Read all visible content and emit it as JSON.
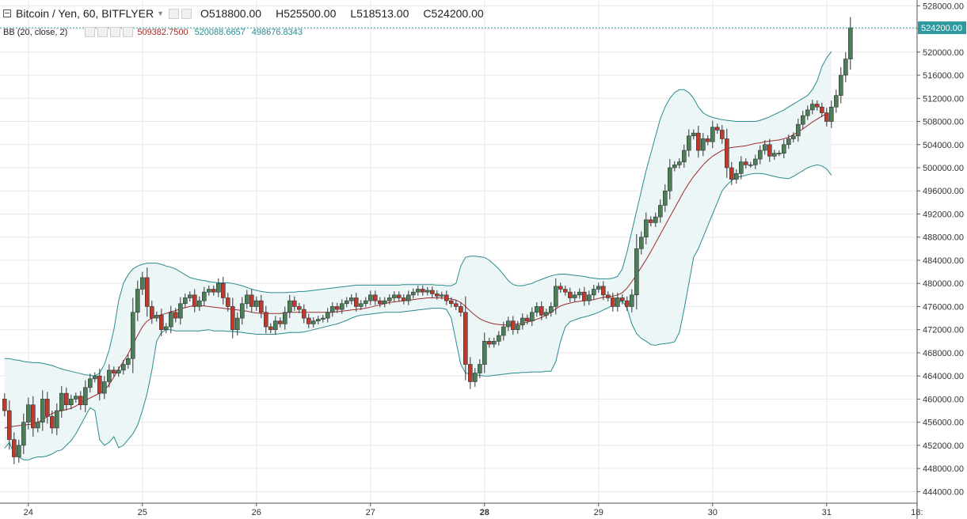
{
  "header": {
    "symbol": "Bitcoin / Yen, 60, BITFLYER",
    "ohlc": [
      {
        "k": "O",
        "v": "518800.00"
      },
      {
        "k": "H",
        "v": "525500.00"
      },
      {
        "k": "L",
        "v": "518513.00"
      },
      {
        "k": "C",
        "v": "524200.00"
      }
    ]
  },
  "indicator": {
    "name": "BB (20, close, 2)",
    "values": [
      "509382.7500",
      "520088.6657",
      "498676.8343"
    ]
  },
  "colors": {
    "up": "#4a7f57",
    "down": "#c0392b",
    "basis": "#9b2c2c",
    "band": "#2a8a8f",
    "fill": "#edf6f6",
    "grid": "#e8e8e8",
    "price_tag": "#2e9aa0"
  },
  "chart_data": {
    "type": "candlestick",
    "y_range": [
      442000,
      529000
    ],
    "y_ticks": [
      444000,
      448000,
      452000,
      456000,
      460000,
      464000,
      468000,
      472000,
      476000,
      480000,
      484000,
      488000,
      492000,
      496000,
      500000,
      504000,
      508000,
      512000,
      516000,
      520000,
      524000,
      528000
    ],
    "y_tick_labels": [
      "444000.00",
      "448000.00",
      "452000.00",
      "456000.00",
      "460000.00",
      "464000.00",
      "468000.00",
      "472000.00",
      "476000.00",
      "480000.00",
      "484000.00",
      "488000.00",
      "492000.00",
      "496000.00",
      "500000.00",
      "504000.00",
      "508000.00",
      "512000.00",
      "516000.00",
      "520000.00",
      "524000.00",
      "528000.00"
    ],
    "x_labels": [
      {
        "label": "24",
        "hour": 5,
        "bold": false
      },
      {
        "label": "25",
        "hour": 29,
        "bold": false
      },
      {
        "label": "26",
        "hour": 53,
        "bold": false
      },
      {
        "label": "27",
        "hour": 77,
        "bold": false
      },
      {
        "label": "28",
        "hour": 101,
        "bold": true
      },
      {
        "label": "29",
        "hour": 125,
        "bold": false
      },
      {
        "label": "30",
        "hour": 149,
        "bold": false
      },
      {
        "label": "31",
        "hour": 173,
        "bold": false
      },
      {
        "label": "18:",
        "hour": 192,
        "bold": false
      }
    ],
    "last_price": 524200,
    "last_price_label": "524200.00",
    "close": [
      458000,
      453000,
      450000,
      452000,
      456000,
      459000,
      455000,
      456000,
      460000,
      457000,
      455000,
      458000,
      461000,
      459000,
      460000,
      460500,
      459000,
      462000,
      463500,
      464000,
      461000,
      463000,
      465000,
      464500,
      465000,
      466000,
      467000,
      475000,
      479000,
      481000,
      476000,
      474000,
      474500,
      472000,
      472500,
      475000,
      474000,
      476500,
      477500,
      478000,
      476000,
      477000,
      478500,
      479000,
      478500,
      480000,
      477500,
      476000,
      472000,
      474000,
      476500,
      478000,
      476000,
      477000,
      475000,
      472500,
      472000,
      473500,
      473000,
      475000,
      477000,
      476000,
      475500,
      474000,
      473000,
      473500,
      473800,
      474000,
      475000,
      476000,
      475500,
      476500,
      477000,
      477500,
      476000,
      476500,
      477000,
      478000,
      477000,
      476500,
      477000,
      477500,
      478000,
      477500,
      477000,
      478000,
      478500,
      479000,
      478500,
      478800,
      478200,
      477800,
      478000,
      477000,
      476500,
      476000,
      475000,
      466000,
      463000,
      464500,
      466000,
      470000,
      469500,
      470000,
      471000,
      472500,
      473500,
      472000,
      472800,
      474000,
      473500,
      475000,
      476000,
      474500,
      475000,
      476000,
      479500,
      479000,
      478500,
      477500,
      478000,
      478500,
      477000,
      478000,
      479000,
      479500,
      478000,
      477500,
      476000,
      477500,
      477000,
      476000,
      478000,
      486000,
      488000,
      491000,
      490500,
      491500,
      493500,
      496000,
      500000,
      500500,
      501000,
      503000,
      505500,
      506000,
      503000,
      505000,
      504500,
      507000,
      506500,
      505000,
      500000,
      498000,
      499000,
      501000,
      500500,
      500500,
      501500,
      503000,
      504000,
      502000,
      502500,
      502500,
      504000,
      505000,
      505500,
      507500,
      509000,
      510000,
      511000,
      510500,
      509500,
      508000,
      510500,
      512500,
      516000,
      518800,
      524200
    ],
    "bb_basis": [
      455000,
      455200,
      455300,
      455400,
      455500,
      455600,
      455700,
      456000,
      456400,
      457000,
      457500,
      457800,
      458000,
      458200,
      458400,
      458800,
      459300,
      459800,
      460200,
      460600,
      461000,
      461500,
      462500,
      463800,
      465200,
      466500,
      467800,
      469500,
      471000,
      472500,
      473500,
      474000,
      474300,
      474600,
      474800,
      475100,
      475300,
      475600,
      475800,
      476000,
      476200,
      476200,
      476100,
      476000,
      475900,
      475800,
      475700,
      475600,
      475500,
      475400,
      475300,
      475200,
      475000,
      474900,
      474800,
      474800,
      474800,
      474800,
      474800,
      474900,
      475000,
      475000,
      475000,
      475000,
      475000,
      475000,
      475000,
      475000,
      475000,
      475000,
      475100,
      475200,
      475300,
      475400,
      475500,
      475600,
      475700,
      475900,
      476100,
      476300,
      476500,
      476700,
      476800,
      476900,
      477000,
      477100,
      477200,
      477300,
      477400,
      477500,
      477500,
      477500,
      477500,
      477400,
      477300,
      477100,
      476700,
      476000,
      475200,
      474500,
      473900,
      473500,
      473200,
      473000,
      472900,
      472800,
      472800,
      472900,
      473000,
      473100,
      473300,
      473500,
      473800,
      474100,
      474500,
      475000,
      475600,
      476100,
      476400,
      476600,
      476800,
      476900,
      477000,
      477100,
      477200,
      477400,
      477600,
      477700,
      477800,
      478000,
      478400,
      479200,
      480300,
      481500,
      482800,
      484100,
      485500,
      487000,
      488500,
      490000,
      491500,
      493000,
      494500,
      496000,
      497300,
      498500,
      499500,
      500500,
      501300,
      502000,
      502500,
      503000,
      503300,
      503500,
      503600,
      503700,
      503800,
      504000,
      504200,
      504300,
      504500,
      504600,
      504700,
      504800,
      505000,
      505300,
      505700,
      506200,
      506700,
      507300,
      507900,
      508400,
      508900,
      509382
    ],
    "bb_upper": [
      467000,
      467000,
      466800,
      466700,
      466500,
      466400,
      466300,
      466300,
      466200,
      466000,
      465800,
      465500,
      465200,
      465000,
      464800,
      464600,
      464400,
      464200,
      464100,
      464000,
      464500,
      466000,
      468500,
      472000,
      477000,
      480000,
      481500,
      482500,
      483000,
      483300,
      483500,
      483500,
      483500,
      483300,
      483000,
      482800,
      482500,
      482000,
      481500,
      481000,
      480800,
      480600,
      480500,
      480300,
      480200,
      480100,
      480100,
      480100,
      480000,
      479800,
      479600,
      479300,
      479000,
      478800,
      478600,
      478500,
      478400,
      478400,
      478400,
      478400,
      478500,
      478500,
      478600,
      478600,
      478700,
      478800,
      478900,
      479000,
      479100,
      479200,
      479300,
      479400,
      479500,
      479600,
      479700,
      479700,
      479700,
      479700,
      479700,
      479700,
      479700,
      479700,
      479700,
      479700,
      479800,
      479800,
      479800,
      479800,
      479800,
      479800,
      479800,
      479700,
      479700,
      479600,
      479600,
      480000,
      483000,
      484500,
      484700,
      484700,
      484600,
      484500,
      484000,
      483300,
      482500,
      481500,
      480500,
      479800,
      479600,
      479600,
      479800,
      480000,
      480400,
      480700,
      481000,
      481300,
      481500,
      481600,
      481600,
      481500,
      481400,
      481300,
      481200,
      481000,
      480900,
      480800,
      480800,
      480800,
      480900,
      481200,
      482500,
      485500,
      489000,
      492500,
      496000,
      499500,
      502500,
      505500,
      508500,
      510500,
      512000,
      513000,
      513500,
      513500,
      513000,
      512000,
      510500,
      509500,
      509000,
      508700,
      508500,
      508300,
      508200,
      508100,
      508000,
      508000,
      508000,
      508000,
      508000,
      508200,
      508500,
      508800,
      509200,
      509600,
      510000,
      510500,
      511000,
      511500,
      512000,
      512500,
      513500,
      515000,
      517500,
      519000,
      520088
    ],
    "bb_lower": [
      451500,
      452500,
      450500,
      450000,
      449500,
      449500,
      449800,
      450000,
      450000,
      450200,
      450500,
      451000,
      451200,
      452000,
      452800,
      454000,
      455500,
      457000,
      458500,
      458000,
      453000,
      452000,
      452500,
      453500,
      451600,
      452000,
      453000,
      454000,
      455500,
      458000,
      461000,
      465000,
      470000,
      471500,
      472000,
      472000,
      471800,
      471800,
      471800,
      471800,
      471800,
      471800,
      471900,
      472000,
      471800,
      471800,
      471800,
      471700,
      471700,
      471600,
      471500,
      471400,
      471300,
      471200,
      471200,
      471200,
      471200,
      471200,
      471300,
      471400,
      471500,
      471500,
      471500,
      471600,
      471800,
      472000,
      472200,
      472400,
      472600,
      472800,
      473000,
      473300,
      473600,
      474000,
      474300,
      474500,
      474600,
      474700,
      474800,
      474900,
      475000,
      475000,
      475000,
      475000,
      475100,
      475200,
      475300,
      475400,
      475500,
      475600,
      475700,
      475700,
      475700,
      475500,
      474000,
      470000,
      466000,
      464500,
      464300,
      464200,
      464100,
      464000,
      464000,
      464100,
      464200,
      464300,
      464400,
      464500,
      464500,
      464600,
      464600,
      464700,
      464700,
      464700,
      464800,
      464800,
      466500,
      470000,
      472500,
      473400,
      473700,
      474000,
      474200,
      474400,
      474700,
      475000,
      475400,
      475800,
      476200,
      476600,
      477000,
      475700,
      473000,
      471300,
      470500,
      470000,
      469400,
      469300,
      469500,
      469600,
      469700,
      469900,
      471500,
      475500,
      480000,
      484500,
      486000,
      488000,
      490000,
      492000,
      494000,
      496000,
      497000,
      497800,
      498300,
      498500,
      498700,
      498900,
      499000,
      499000,
      498900,
      498700,
      498500,
      498300,
      498200,
      498100,
      498500,
      499000,
      499500,
      500000,
      500300,
      500500,
      500300,
      499800,
      498676
    ]
  }
}
